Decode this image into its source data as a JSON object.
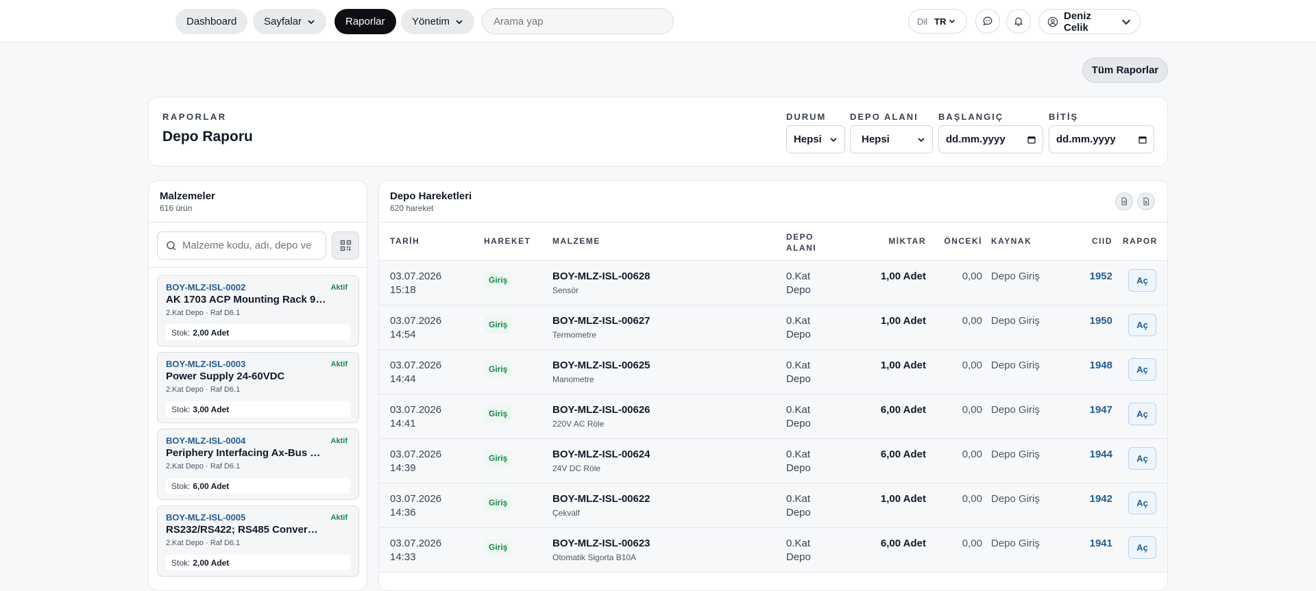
{
  "nav": {
    "items": [
      {
        "label": "Dashboard",
        "active": false,
        "has_dropdown": false
      },
      {
        "label": "Sayfalar",
        "active": false,
        "has_dropdown": true
      },
      {
        "label": "Raporlar",
        "active": true,
        "has_dropdown": false
      },
      {
        "label": "Yönetim",
        "active": false,
        "has_dropdown": true
      }
    ],
    "search_placeholder": "Arama yap",
    "lang_label": "Dil",
    "lang_code": "TR",
    "user_name": "Deniz Celik"
  },
  "actions": {
    "all_reports": "Tüm Raporlar"
  },
  "header": {
    "eyebrow": "RAPORLAR",
    "title": "Depo Raporu",
    "filters": {
      "status_label": "DURUM",
      "status_value": "Hepsi",
      "area_label": "DEPO ALANI",
      "area_value": "Hepsi",
      "start_label": "BAŞLANGIÇ",
      "start_value": "dd.mm.yyyy",
      "end_label": "BİTİŞ",
      "end_value": "dd.mm.yyyy"
    }
  },
  "materials": {
    "title": "Malzemeler",
    "count": "616 ürün",
    "search_placeholder": "Malzeme kodu, adı, depo ve",
    "stock_label": "Stok:",
    "items": [
      {
        "code": "BOY-MLZ-ISL-0002",
        "status": "Aktif",
        "name": "AK 1703 ACP Mounting Rack 9…",
        "location": "2.Kat Depo · Raf D6.1",
        "stock": "2,00 Adet"
      },
      {
        "code": "BOY-MLZ-ISL-0003",
        "status": "Aktif",
        "name": "Power Supply 24-60VDC",
        "location": "2.Kat Depo · Raf D6.1",
        "stock": "3,00 Adet"
      },
      {
        "code": "BOY-MLZ-ISL-0004",
        "status": "Aktif",
        "name": "Periphery Interfacing Ax-Bus …",
        "location": "2.Kat Depo · Raf D6.1",
        "stock": "6,00 Adet"
      },
      {
        "code": "BOY-MLZ-ISL-0005",
        "status": "Aktif",
        "name": "RS232/RS422; RS485 Conver…",
        "location": "2.Kat Depo · Raf D6.1",
        "stock": "2,00 Adet"
      }
    ]
  },
  "movements": {
    "title": "Depo Hareketleri",
    "count": "620 hareket",
    "columns": [
      "TARİH",
      "HAREKET",
      "MALZEME",
      "DEPO ALANI",
      "MİKTAR",
      "ÖNCEKİ",
      "KAYNAK",
      "CIID",
      "RAPOR"
    ],
    "open_label": "Aç",
    "rows": [
      {
        "date": "03.07.2026",
        "time": "15:18",
        "type": "Giriş",
        "code": "BOY-MLZ-ISL-00628",
        "name": "Sensör",
        "area": "0.Kat Depo",
        "qty": "1,00 Adet",
        "prev": "0,00",
        "source": "Depo Giriş",
        "ciid": "1952"
      },
      {
        "date": "03.07.2026",
        "time": "14:54",
        "type": "Giriş",
        "code": "BOY-MLZ-ISL-00627",
        "name": "Termometre",
        "area": "0.Kat Depo",
        "qty": "1,00 Adet",
        "prev": "0,00",
        "source": "Depo Giriş",
        "ciid": "1950"
      },
      {
        "date": "03.07.2026",
        "time": "14:44",
        "type": "Giriş",
        "code": "BOY-MLZ-ISL-00625",
        "name": "Manometre",
        "area": "0.Kat Depo",
        "qty": "1,00 Adet",
        "prev": "0,00",
        "source": "Depo Giriş",
        "ciid": "1948"
      },
      {
        "date": "03.07.2026",
        "time": "14:41",
        "type": "Giriş",
        "code": "BOY-MLZ-ISL-00626",
        "name": "220V AC Röle",
        "area": "0.Kat Depo",
        "qty": "6,00 Adet",
        "prev": "0,00",
        "source": "Depo Giriş",
        "ciid": "1947"
      },
      {
        "date": "03.07.2026",
        "time": "14:39",
        "type": "Giriş",
        "code": "BOY-MLZ-ISL-00624",
        "name": "24V DC Röle",
        "area": "0.Kat Depo",
        "qty": "6,00 Adet",
        "prev": "0,00",
        "source": "Depo Giriş",
        "ciid": "1944"
      },
      {
        "date": "03.07.2026",
        "time": "14:36",
        "type": "Giriş",
        "code": "BOY-MLZ-ISL-00622",
        "name": "Çekvalf",
        "area": "0.Kat Depo",
        "qty": "1,00 Adet",
        "prev": "0,00",
        "source": "Depo Giriş",
        "ciid": "1942"
      },
      {
        "date": "03.07.2026",
        "time": "14:33",
        "type": "Giriş",
        "code": "BOY-MLZ-ISL-00623",
        "name": "Otomatik Sigorta B10A",
        "area": "0.Kat Depo",
        "qty": "6,00 Adet",
        "prev": "0,00",
        "source": "Depo Giriş",
        "ciid": "1941"
      }
    ]
  }
}
